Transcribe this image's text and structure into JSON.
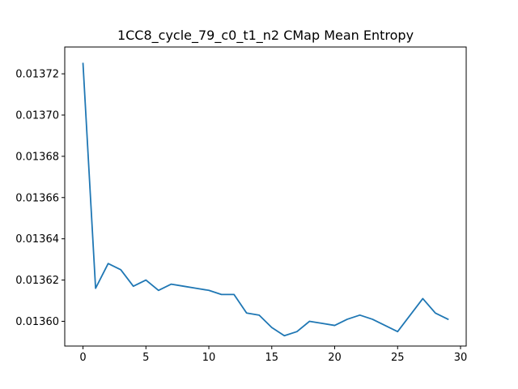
{
  "chart_data": {
    "type": "line",
    "title": "1CC8_cycle_79_c0_t1_n2 CMap Mean Entropy",
    "xlabel": "",
    "ylabel": "",
    "xlim": [
      -1.45,
      30.45
    ],
    "ylim": [
      0.013588,
      0.013733
    ],
    "grid": false,
    "x_ticks": [
      0,
      5,
      10,
      15,
      20,
      25,
      30
    ],
    "y_ticks": [
      0.0136,
      0.01362,
      0.01364,
      0.01366,
      0.01368,
      0.0137,
      0.01372
    ],
    "y_tick_labels": [
      "0.01360",
      "0.01362",
      "0.01364",
      "0.01366",
      "0.01368",
      "0.01370",
      "0.01372"
    ],
    "line_color": "#1f77b4",
    "series": [
      {
        "x": [
          0,
          1,
          2,
          3,
          4,
          5,
          6,
          7,
          8,
          9,
          10,
          11,
          12,
          13,
          14,
          15,
          16,
          17,
          18,
          19,
          20,
          21,
          22,
          23,
          24,
          25,
          26,
          27,
          28,
          29
        ],
        "values": [
          0.013725,
          0.013616,
          0.013628,
          0.013625,
          0.013617,
          0.01362,
          0.013615,
          0.013618,
          0.013617,
          0.013616,
          0.013615,
          0.013613,
          0.013613,
          0.013604,
          0.013603,
          0.013597,
          0.013593,
          0.013595,
          0.0136,
          0.013599,
          0.013598,
          0.013601,
          0.013603,
          0.013601,
          0.013598,
          0.013595,
          0.013603,
          0.013611,
          0.013604,
          0.013601
        ]
      }
    ]
  }
}
